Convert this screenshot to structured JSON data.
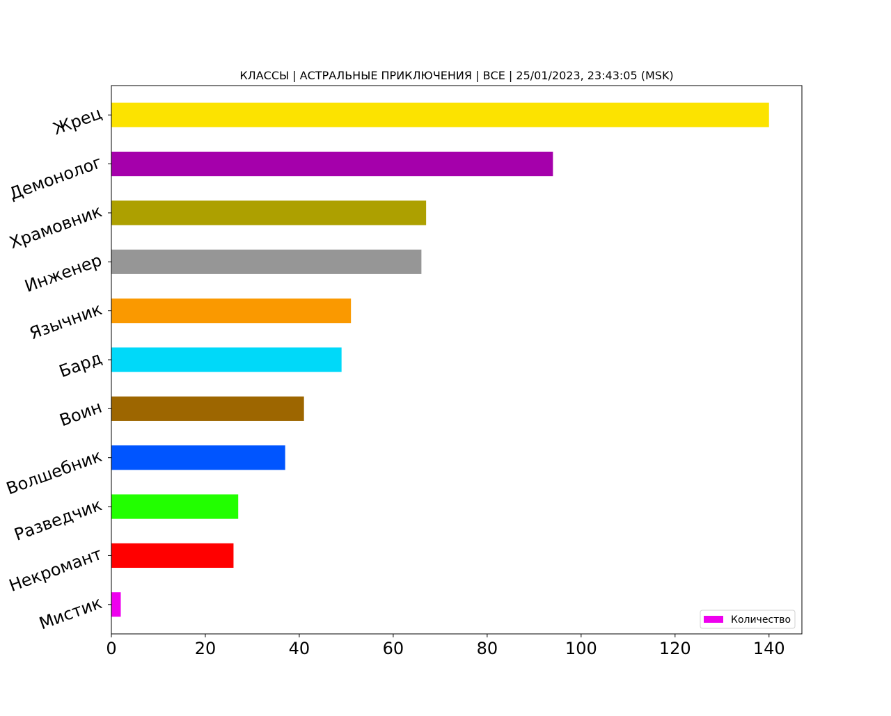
{
  "chart_data": {
    "type": "bar",
    "orientation": "horizontal",
    "title": "КЛАССЫ | АСТРАЛЬНЫЕ ПРИКЛЮЧЕНИЯ | ВСЕ | 25/01/2023, 23:43:05 (MSK)",
    "xlabel": "",
    "ylabel": "",
    "xlim": [
      0,
      147
    ],
    "xticks": [
      0,
      20,
      40,
      60,
      80,
      100,
      120,
      140
    ],
    "grid": false,
    "legend": {
      "position": "lower-right",
      "entries": [
        {
          "label": "Количество",
          "color": "#ee00ee"
        }
      ]
    },
    "categories": [
      "Мистик",
      "Некромант",
      "Разведчик",
      "Волшебник",
      "Воин",
      "Бард",
      "Язычник",
      "Инженер",
      "Храмовник",
      "Демонолог",
      "Жрец"
    ],
    "values": [
      2,
      26,
      27,
      37,
      41,
      49,
      51,
      66,
      67,
      94,
      140
    ],
    "bar_colors": [
      "#ee00ee",
      "#ff0000",
      "#22ff00",
      "#0055ff",
      "#9d6600",
      "#00d9f9",
      "#fa9900",
      "#969696",
      "#ada000",
      "#a500ab",
      "#fce300"
    ]
  }
}
